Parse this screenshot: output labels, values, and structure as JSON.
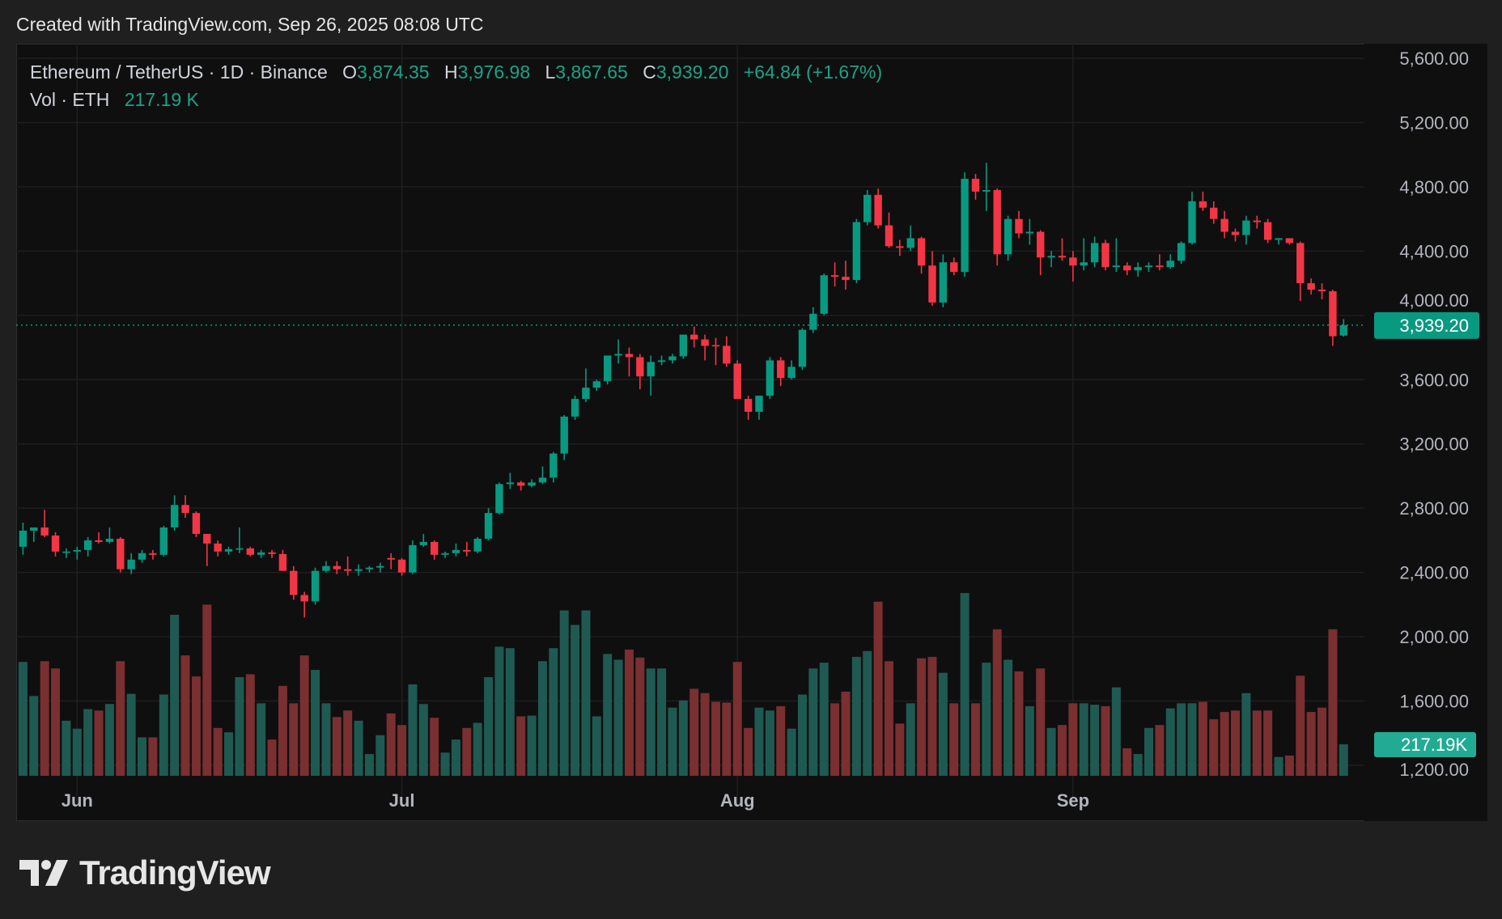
{
  "header": {
    "created": "Created with TradingView.com, Sep 26, 2025 08:08 UTC"
  },
  "legend": {
    "symbol": "Ethereum / TetherUS · 1D · Binance",
    "o_label": "O",
    "o": "3,874.35",
    "h_label": "H",
    "h": "3,976.98",
    "l_label": "L",
    "l": "3,867.65",
    "c_label": "C",
    "c": "3,939.20",
    "change": "+64.84 (+1.67%)",
    "vol_label": "Vol · ETH",
    "vol": "217.19 K"
  },
  "logo": {
    "text": "TradingView"
  },
  "colors": {
    "up": "#089981",
    "down": "#F23645",
    "vol_up": "#1f5a52",
    "vol_down": "#7a2f30",
    "background": "#0f0f0f",
    "grid": "#1f1f1f"
  },
  "chart_data": {
    "type": "candlestick",
    "interval": "1D",
    "start_date": "2025-05-27",
    "ylim": [
      1200,
      5600
    ],
    "yticks": [
      "5,600.00",
      "5,200.00",
      "4,800.00",
      "4,400.00",
      "4,000.00",
      "3,600.00",
      "3,200.00",
      "2,800.00",
      "2,400.00",
      "2,000.00",
      "1,600.00",
      "1,200.00"
    ],
    "xticks": [
      {
        "label": "Jun",
        "date": "2025-06-01"
      },
      {
        "label": "Jul",
        "date": "2025-07-01"
      },
      {
        "label": "Aug",
        "date": "2025-08-01"
      },
      {
        "label": "Sep",
        "date": "2025-09-01"
      }
    ],
    "last_price_label": "3,939.20",
    "last_volume_label": "217.19K",
    "volume_unit": "K ETH",
    "grid": true,
    "candles_ohlcv": [
      [
        2560,
        2710,
        2510,
        2660,
        785
      ],
      [
        2660,
        2680,
        2590,
        2680,
        550
      ],
      [
        2680,
        2790,
        2620,
        2630,
        790
      ],
      [
        2630,
        2650,
        2500,
        2530,
        740
      ],
      [
        2530,
        2550,
        2490,
        2530,
        380
      ],
      [
        2530,
        2560,
        2480,
        2540,
        325
      ],
      [
        2540,
        2620,
        2500,
        2600,
        460
      ],
      [
        2600,
        2650,
        2580,
        2590,
        450
      ],
      [
        2590,
        2680,
        2580,
        2610,
        495
      ],
      [
        2610,
        2620,
        2400,
        2420,
        790
      ],
      [
        2420,
        2520,
        2390,
        2480,
        565
      ],
      [
        2480,
        2540,
        2460,
        2520,
        265
      ],
      [
        2520,
        2540,
        2480,
        2510,
        265
      ],
      [
        2510,
        2690,
        2500,
        2680,
        560
      ],
      [
        2680,
        2880,
        2660,
        2820,
        1110
      ],
      [
        2820,
        2880,
        2740,
        2770,
        830
      ],
      [
        2770,
        2780,
        2620,
        2640,
        685
      ],
      [
        2640,
        2640,
        2440,
        2580,
        1180
      ],
      [
        2580,
        2600,
        2500,
        2530,
        330
      ],
      [
        2530,
        2560,
        2510,
        2545,
        300
      ],
      [
        2545,
        2680,
        2520,
        2550,
        680
      ],
      [
        2550,
        2560,
        2500,
        2510,
        700
      ],
      [
        2510,
        2540,
        2490,
        2525,
        500
      ],
      [
        2525,
        2540,
        2490,
        2515,
        250
      ],
      [
        2515,
        2540,
        2410,
        2410,
        620
      ],
      [
        2410,
        2440,
        2230,
        2260,
        500
      ],
      [
        2260,
        2280,
        2120,
        2220,
        830
      ],
      [
        2220,
        2430,
        2200,
        2410,
        730
      ],
      [
        2410,
        2470,
        2400,
        2440,
        500
      ],
      [
        2440,
        2470,
        2390,
        2420,
        405
      ],
      [
        2420,
        2500,
        2380,
        2410,
        450
      ],
      [
        2410,
        2450,
        2380,
        2420,
        380
      ],
      [
        2420,
        2440,
        2400,
        2430,
        150
      ],
      [
        2430,
        2460,
        2400,
        2440,
        280
      ],
      [
        2490,
        2520,
        2420,
        2480,
        430
      ],
      [
        2480,
        2490,
        2380,
        2400,
        350
      ],
      [
        2400,
        2600,
        2390,
        2570,
        630
      ],
      [
        2570,
        2640,
        2560,
        2590,
        495
      ],
      [
        2590,
        2600,
        2480,
        2510,
        400
      ],
      [
        2510,
        2530,
        2490,
        2520,
        160
      ],
      [
        2520,
        2580,
        2500,
        2540,
        250
      ],
      [
        2540,
        2590,
        2500,
        2530,
        330
      ],
      [
        2530,
        2620,
        2520,
        2610,
        365
      ],
      [
        2610,
        2800,
        2600,
        2770,
        680
      ],
      [
        2770,
        2960,
        2760,
        2950,
        890
      ],
      [
        2950,
        3020,
        2920,
        2960,
        880
      ],
      [
        2960,
        2970,
        2910,
        2940,
        410
      ],
      [
        2940,
        2980,
        2930,
        2960,
        415
      ],
      [
        2960,
        3060,
        2950,
        2990,
        790
      ],
      [
        2990,
        3150,
        2960,
        3140,
        880
      ],
      [
        3140,
        3380,
        3100,
        3370,
        1140
      ],
      [
        3370,
        3500,
        3350,
        3480,
        1040
      ],
      [
        3480,
        3670,
        3460,
        3550,
        1140
      ],
      [
        3550,
        3600,
        3530,
        3590,
        410
      ],
      [
        3590,
        3750,
        3570,
        3750,
        840
      ],
      [
        3750,
        3850,
        3700,
        3760,
        800
      ],
      [
        3760,
        3800,
        3620,
        3740,
        870
      ],
      [
        3740,
        3760,
        3540,
        3620,
        815
      ],
      [
        3620,
        3750,
        3500,
        3710,
        740
      ],
      [
        3710,
        3750,
        3690,
        3720,
        740
      ],
      [
        3720,
        3760,
        3700,
        3745,
        470
      ],
      [
        3745,
        3880,
        3730,
        3880,
        520
      ],
      [
        3880,
        3930,
        3800,
        3850,
        600
      ],
      [
        3850,
        3880,
        3720,
        3810,
        570
      ],
      [
        3815,
        3860,
        3690,
        3810,
        510
      ],
      [
        3810,
        3870,
        3680,
        3700,
        505
      ],
      [
        3700,
        3720,
        3480,
        3480,
        785
      ],
      [
        3480,
        3500,
        3350,
        3400,
        330
      ],
      [
        3400,
        3500,
        3350,
        3500,
        470
      ],
      [
        3500,
        3740,
        3480,
        3720,
        450
      ],
      [
        3720,
        3740,
        3560,
        3610,
        480
      ],
      [
        3610,
        3720,
        3600,
        3680,
        325
      ],
      [
        3680,
        3920,
        3660,
        3910,
        560
      ],
      [
        3910,
        4050,
        3890,
        4010,
        740
      ],
      [
        4010,
        4260,
        4000,
        4250,
        780
      ],
      [
        4250,
        4330,
        4180,
        4240,
        500
      ],
      [
        4240,
        4340,
        4160,
        4220,
        580
      ],
      [
        4220,
        4600,
        4200,
        4580,
        820
      ],
      [
        4580,
        4780,
        4560,
        4750,
        860
      ],
      [
        4750,
        4790,
        4540,
        4560,
        1200
      ],
      [
        4560,
        4640,
        4420,
        4430,
        790
      ],
      [
        4430,
        4470,
        4370,
        4420,
        360
      ],
      [
        4420,
        4560,
        4400,
        4480,
        500
      ],
      [
        4480,
        4490,
        4260,
        4310,
        810
      ],
      [
        4310,
        4400,
        4060,
        4080,
        820
      ],
      [
        4080,
        4380,
        4050,
        4330,
        710
      ],
      [
        4330,
        4360,
        4250,
        4270,
        500
      ],
      [
        4270,
        4890,
        4240,
        4850,
        1260
      ],
      [
        4850,
        4880,
        4720,
        4770,
        500
      ],
      [
        4770,
        4950,
        4650,
        4780,
        780
      ],
      [
        4780,
        4790,
        4310,
        4380,
        1010
      ],
      [
        4380,
        4620,
        4340,
        4600,
        800
      ],
      [
        4600,
        4650,
        4480,
        4510,
        720
      ],
      [
        4510,
        4600,
        4440,
        4520,
        480
      ],
      [
        4520,
        4530,
        4250,
        4360,
        740
      ],
      [
        4360,
        4400,
        4300,
        4370,
        330
      ],
      [
        4370,
        4480,
        4340,
        4360,
        350
      ],
      [
        4360,
        4400,
        4210,
        4310,
        500
      ],
      [
        4310,
        4480,
        4280,
        4330,
        500
      ],
      [
        4330,
        4490,
        4300,
        4450,
        490
      ],
      [
        4450,
        4470,
        4280,
        4300,
        480
      ],
      [
        4300,
        4480,
        4270,
        4310,
        610
      ],
      [
        4310,
        4330,
        4250,
        4280,
        190
      ],
      [
        4280,
        4330,
        4240,
        4300,
        150
      ],
      [
        4300,
        4330,
        4270,
        4310,
        330
      ],
      [
        4310,
        4380,
        4280,
        4300,
        350
      ],
      [
        4300,
        4380,
        4290,
        4340,
        465
      ],
      [
        4340,
        4460,
        4320,
        4450,
        500
      ],
      [
        4450,
        4770,
        4440,
        4710,
        500
      ],
      [
        4710,
        4770,
        4650,
        4670,
        510
      ],
      [
        4670,
        4710,
        4570,
        4600,
        390
      ],
      [
        4600,
        4650,
        4480,
        4520,
        440
      ],
      [
        4520,
        4540,
        4460,
        4500,
        450
      ],
      [
        4500,
        4620,
        4440,
        4590,
        570
      ],
      [
        4590,
        4620,
        4540,
        4580,
        450
      ],
      [
        4580,
        4600,
        4450,
        4470,
        450
      ],
      [
        4470,
        4480,
        4440,
        4480,
        130
      ],
      [
        4480,
        4480,
        4440,
        4450,
        140
      ],
      [
        4450,
        4460,
        4090,
        4200,
        690
      ],
      [
        4200,
        4230,
        4130,
        4160,
        440
      ],
      [
        4160,
        4200,
        4100,
        4150,
        470
      ],
      [
        4150,
        4160,
        3810,
        3870,
        1010
      ],
      [
        3874.35,
        3976.98,
        3867.65,
        3939.2,
        217.19
      ]
    ]
  }
}
